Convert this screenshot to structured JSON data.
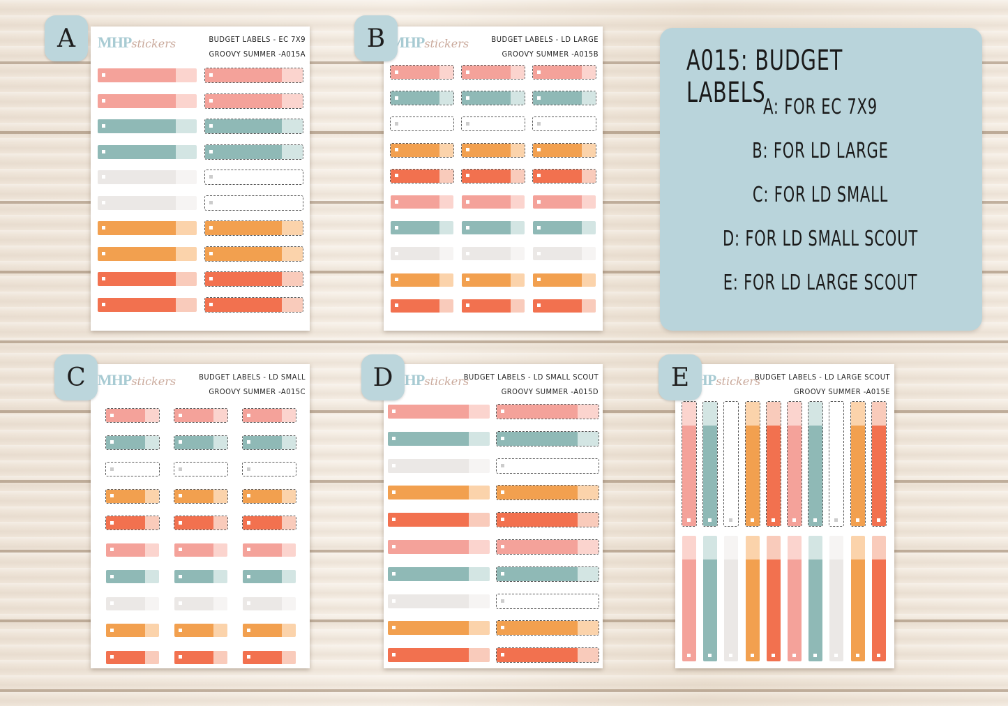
{
  "colors": {
    "pink": "#f4a29a",
    "pink_light": "#fbd4ce",
    "teal": "#8fb9b6",
    "teal_light": "#d3e5e3",
    "gray": "#ebe8e6",
    "gray_light": "#f6f4f3",
    "orange": "#f2a04f",
    "orange_light": "#fbd3ab",
    "red": "#f2714f",
    "red_light": "#f9cbbb"
  },
  "brand": {
    "logo_main": "MHP",
    "logo_sub": "stickers"
  },
  "sheets": {
    "a": {
      "badge": "A",
      "title_line1": "BUDGET LABELS - EC 7X9",
      "title_line2": "GROOVY SUMMER -A015A"
    },
    "b": {
      "badge": "B",
      "title_line1": "BUDGET LABELS - LD LARGE",
      "title_line2": "GROOVY SUMMER -A015B"
    },
    "c": {
      "badge": "C",
      "title_line1": "BUDGET LABELS - LD SMALL",
      "title_line2": "GROOVY SUMMER -A015C"
    },
    "d": {
      "badge": "D",
      "title_line1": "BUDGET LABELS - LD SMALL SCOUT",
      "title_line2": "GROOVY SUMMER -A015D"
    },
    "e": {
      "badge": "E",
      "title_line1": "BUDGET LABELS - LD LARGE SCOUT",
      "title_line2": "GROOVY SUMMER -A015E"
    }
  },
  "info": {
    "title": "A015: BUDGET LABELS",
    "lines": [
      "A: FOR EC 7X9",
      "B: FOR LD LARGE",
      "C: FOR LD SMALL",
      "D: FOR LD SMALL SCOUT",
      "E: FOR LD LARGE SCOUT"
    ]
  }
}
